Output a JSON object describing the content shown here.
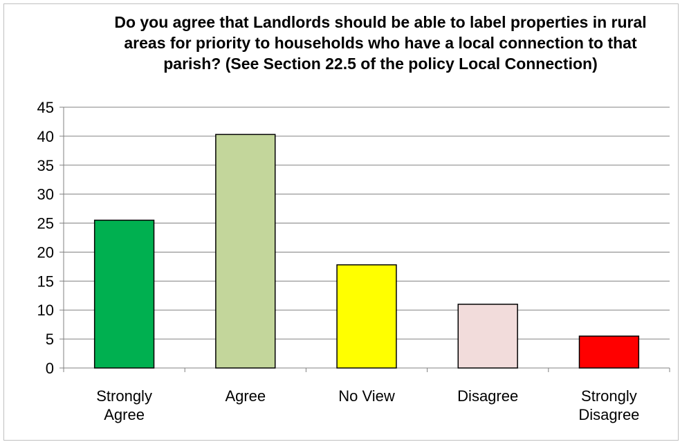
{
  "chart_data": {
    "type": "bar",
    "title": "Do you agree that Landlords should be able to label properties in rural areas for priority to households who have a local connection to that parish? (See Section 22.5 of the policy  Local Connection)",
    "categories": [
      "Strongly Agree",
      "Agree",
      "No View",
      "Disagree",
      "Strongly Disagree"
    ],
    "category_lines": [
      [
        "Strongly",
        "Agree"
      ],
      [
        "Agree"
      ],
      [
        "No View"
      ],
      [
        "Disagree"
      ],
      [
        "Strongly",
        "Disagree"
      ]
    ],
    "values": [
      25.5,
      40.3,
      17.8,
      11.0,
      5.5
    ],
    "colors": [
      "#00b050",
      "#c3d69b",
      "#ffff00",
      "#f2dcdb",
      "#ff0000"
    ],
    "ylim": [
      0,
      45
    ],
    "yticks": [
      0,
      5,
      10,
      15,
      20,
      25,
      30,
      35,
      40,
      45
    ],
    "grid": true,
    "legend": "none",
    "xlabel": "",
    "ylabel": ""
  }
}
